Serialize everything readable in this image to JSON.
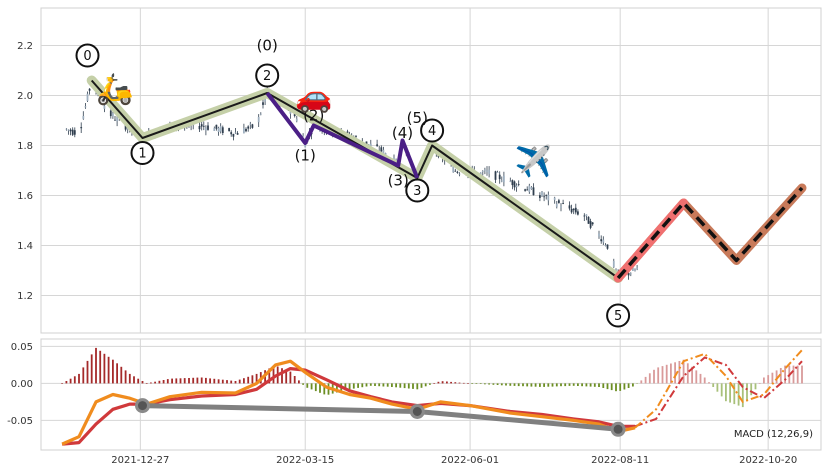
{
  "chart_data": [
    {
      "type": "candlestick",
      "title": "",
      "xlabel": "",
      "ylabel": "",
      "ylim": [
        1.05,
        2.35
      ],
      "yticks": [
        "2.2",
        "2.0",
        "1.8",
        "1.6",
        "1.4",
        "1.2"
      ],
      "xticks": [
        "2021-12-27",
        "2022-03-15",
        "2022-06-01",
        "2022-08-11",
        "2022-10-20"
      ],
      "grid": true,
      "colors": {
        "candle": "#2f3e4e",
        "impulse_fill": "#c5d0a8",
        "impulse_line": "#1a1a1a",
        "subwave": "#4b1f86",
        "projection_outline": "#c87a5a",
        "projection_first_leg": "#f07070",
        "projection_dash": "#111111"
      },
      "wave_labels": [
        {
          "text": "0",
          "circled": true,
          "x": "2021-12-02",
          "y": 2.16
        },
        {
          "text": "1",
          "circled": true,
          "x": "2021-12-28",
          "y": 1.77
        },
        {
          "text": "2",
          "circled": true,
          "x": "2022-02-25",
          "y": 2.08
        },
        {
          "text": "3",
          "circled": true,
          "x": "2022-05-07",
          "y": 1.62
        },
        {
          "text": "4",
          "circled": true,
          "x": "2022-05-14",
          "y": 1.86
        },
        {
          "text": "5",
          "circled": true,
          "x": "2022-08-10",
          "y": 1.12
        },
        {
          "text": "(0)",
          "circled": false,
          "x": "2022-02-25",
          "y": 2.2
        },
        {
          "text": "(1)",
          "circled": false,
          "x": "2022-03-15",
          "y": 1.76
        },
        {
          "text": "(2)",
          "circled": false,
          "x": "2022-03-19",
          "y": 1.92
        },
        {
          "text": "(3)",
          "circled": false,
          "x": "2022-04-28",
          "y": 1.66
        },
        {
          "text": "(4)",
          "circled": false,
          "x": "2022-04-30",
          "y": 1.85
        },
        {
          "text": "(5)",
          "circled": false,
          "x": "2022-05-07",
          "y": 1.91
        }
      ],
      "icons": [
        {
          "name": "scooter-icon",
          "glyph": "🛵",
          "x": "2021-12-15",
          "y": 2.03
        },
        {
          "name": "car-icon",
          "glyph": "🚗",
          "x": "2022-03-19",
          "y": 2.0
        },
        {
          "name": "airplane-icon",
          "glyph": "✈️",
          "x": "2022-07-01",
          "y": 1.74
        }
      ],
      "impulse_wave": {
        "x": [
          "2021-12-04",
          "2021-12-28",
          "2022-02-25",
          "2022-05-07",
          "2022-05-14",
          "2022-08-10"
        ],
        "y": [
          2.06,
          1.83,
          2.01,
          1.67,
          1.8,
          1.27
        ]
      },
      "subwave": {
        "x": [
          "2022-02-25",
          "2022-03-15",
          "2022-03-19",
          "2022-04-28",
          "2022-04-30",
          "2022-05-07"
        ],
        "y": [
          2.01,
          1.81,
          1.88,
          1.72,
          1.82,
          1.67
        ]
      },
      "projection": {
        "x": [
          "2022-08-10",
          "2022-09-10",
          "2022-10-05",
          "2022-11-05"
        ],
        "y": [
          1.27,
          1.57,
          1.34,
          1.63
        ]
      },
      "price_path": {
        "x": [
          "2021-11-20",
          "2021-11-28",
          "2021-12-04",
          "2021-12-12",
          "2021-12-20",
          "2021-12-28",
          "2022-01-10",
          "2022-01-25",
          "2022-02-10",
          "2022-02-20",
          "2022-02-25",
          "2022-03-10",
          "2022-03-15",
          "2022-03-19",
          "2022-04-05",
          "2022-04-20",
          "2022-04-28",
          "2022-04-30",
          "2022-05-07",
          "2022-05-14",
          "2022-05-25",
          "2022-06-10",
          "2022-06-25",
          "2022-07-10",
          "2022-07-25",
          "2022-08-05",
          "2022-08-10",
          "2022-08-20"
        ],
        "y": [
          1.87,
          1.85,
          2.06,
          1.93,
          1.88,
          1.83,
          1.88,
          1.88,
          1.85,
          1.88,
          2.01,
          1.93,
          1.81,
          1.88,
          1.84,
          1.78,
          1.72,
          1.82,
          1.67,
          1.8,
          1.7,
          1.69,
          1.64,
          1.58,
          1.52,
          1.4,
          1.27,
          1.31
        ]
      }
    },
    {
      "type": "bar+line",
      "title": "",
      "label": "MACD (12,26,9)",
      "ylim": [
        -0.09,
        0.06
      ],
      "yticks": [
        "0.05",
        "0.00",
        "-0.05"
      ],
      "colors": {
        "histogram_positive": "#a52a2a",
        "histogram_negative": "#6b8e23",
        "projected_positive": "#d99a9a",
        "projected_negative": "#a8c07a",
        "macd_line": "#f08c1e",
        "signal_line": "#d0393b",
        "trend_line": "#808080"
      },
      "macd": {
        "x": [
          "2021-11-20",
          "2021-11-28",
          "2021-12-06",
          "2021-12-14",
          "2021-12-22",
          "2021-12-30",
          "2022-01-10",
          "2022-01-25",
          "2022-02-10",
          "2022-02-20",
          "2022-03-01",
          "2022-03-08",
          "2022-03-15",
          "2022-03-25",
          "2022-04-05",
          "2022-04-15",
          "2022-04-25",
          "2022-05-07",
          "2022-05-18",
          "2022-06-01",
          "2022-06-20",
          "2022-07-05",
          "2022-07-20",
          "2022-08-01",
          "2022-08-10",
          "2022-08-18"
        ],
        "y": [
          -0.082,
          -0.072,
          -0.025,
          -0.015,
          -0.02,
          -0.028,
          -0.018,
          -0.012,
          -0.013,
          0.0,
          0.025,
          0.03,
          0.015,
          -0.005,
          -0.015,
          -0.02,
          -0.028,
          -0.035,
          -0.025,
          -0.03,
          -0.04,
          -0.045,
          -0.05,
          -0.055,
          -0.065,
          -0.06
        ]
      },
      "signal": {
        "x": [
          "2021-11-20",
          "2021-11-28",
          "2021-12-06",
          "2021-12-14",
          "2021-12-22",
          "2021-12-30",
          "2022-01-10",
          "2022-01-25",
          "2022-02-10",
          "2022-02-20",
          "2022-03-01",
          "2022-03-08",
          "2022-03-15",
          "2022-03-25",
          "2022-04-05",
          "2022-04-15",
          "2022-04-25",
          "2022-05-07",
          "2022-05-18",
          "2022-06-01",
          "2022-06-20",
          "2022-07-05",
          "2022-07-20",
          "2022-08-01",
          "2022-08-10",
          "2022-08-18"
        ],
        "y": [
          -0.082,
          -0.08,
          -0.055,
          -0.035,
          -0.028,
          -0.028,
          -0.022,
          -0.017,
          -0.015,
          -0.008,
          0.01,
          0.02,
          0.018,
          0.005,
          -0.01,
          -0.018,
          -0.025,
          -0.03,
          -0.027,
          -0.03,
          -0.038,
          -0.042,
          -0.048,
          -0.052,
          -0.058,
          -0.058
        ]
      },
      "macd_projection": {
        "x": [
          "2022-08-18",
          "2022-08-28",
          "2022-09-10",
          "2022-09-20",
          "2022-09-30",
          "2022-10-08",
          "2022-10-18",
          "2022-10-28",
          "2022-11-05"
        ],
        "y": [
          -0.06,
          -0.035,
          0.03,
          0.04,
          0.01,
          -0.025,
          -0.015,
          0.02,
          0.045
        ]
      },
      "signal_projection": {
        "x": [
          "2022-08-18",
          "2022-08-28",
          "2022-09-10",
          "2022-09-20",
          "2022-09-30",
          "2022-10-08",
          "2022-10-18",
          "2022-10-28",
          "2022-11-05"
        ],
        "y": [
          -0.058,
          -0.048,
          0.01,
          0.035,
          0.025,
          -0.005,
          -0.02,
          0.005,
          0.03
        ]
      },
      "trend_points": {
        "x": [
          "2021-12-28",
          "2022-05-07",
          "2022-08-10"
        ],
        "y": [
          -0.03,
          -0.038,
          -0.062
        ]
      }
    }
  ]
}
